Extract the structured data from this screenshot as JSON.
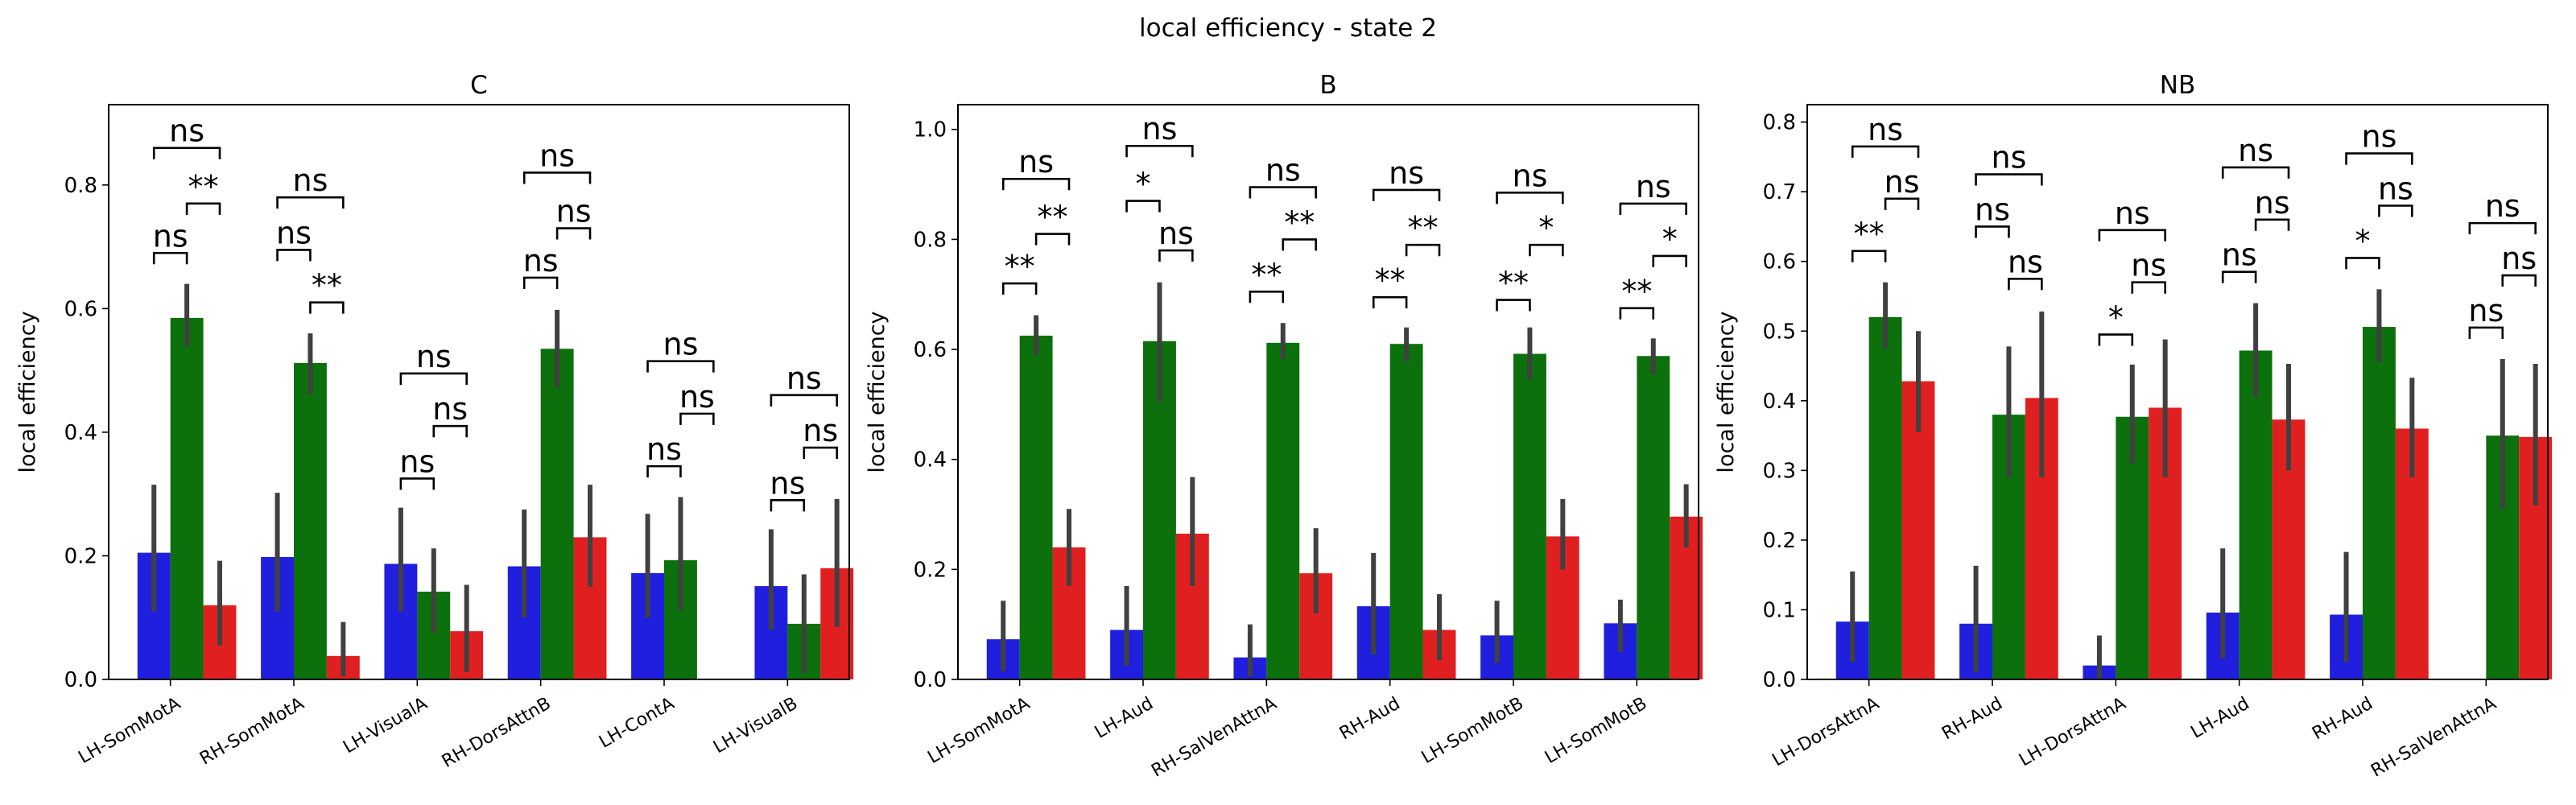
{
  "suptitle": "local efficiency - state 2",
  "colors": {
    "series1": "#1f1fdd",
    "series2": "#0c700c",
    "series3": "#e02020",
    "errorbar": "#404040"
  },
  "chart_data": [
    {
      "type": "bar",
      "title": "C",
      "ylabel": "local efficiency",
      "ylim": [
        0,
        0.93
      ],
      "yticks": [
        "0.0",
        "0.2",
        "0.4",
        "0.6",
        "0.8"
      ],
      "categories": [
        "LH-SomMotA",
        "RH-SomMotA",
        "LH-VisualA",
        "RH-DorsAttnB",
        "LH-ContA",
        "LH-VisualB"
      ],
      "series": [
        {
          "values": [
            0.205,
            0.198,
            0.187,
            0.183,
            0.172,
            0.151
          ],
          "err_low": [
            0.11,
            0.11,
            0.11,
            0.1,
            0.1,
            0.08
          ],
          "err_high": [
            0.315,
            0.302,
            0.278,
            0.275,
            0.268,
            0.243
          ]
        },
        {
          "values": [
            0.585,
            0.512,
            0.142,
            0.535,
            0.193,
            0.09
          ],
          "err_low": [
            0.538,
            0.462,
            0.075,
            0.472,
            0.112,
            0.01
          ],
          "err_high": [
            0.64,
            0.56,
            0.212,
            0.598,
            0.295,
            0.17
          ]
        },
        {
          "values": [
            0.12,
            0.038,
            0.078,
            0.23,
            null,
            0.18
          ],
          "err_low": [
            0.055,
            0.005,
            0.012,
            0.15,
            null,
            0.085
          ],
          "err_high": [
            0.192,
            0.093,
            0.153,
            0.315,
            null,
            0.292
          ]
        }
      ],
      "annotations": [
        {
          "category": 0,
          "from": 0,
          "to": 1,
          "y": 0.69,
          "label": "ns"
        },
        {
          "category": 0,
          "from": 1,
          "to": 2,
          "y": 0.77,
          "label": "**"
        },
        {
          "category": 0,
          "from": 0,
          "to": 2,
          "y": 0.86,
          "label": "ns"
        },
        {
          "category": 1,
          "from": 0,
          "to": 1,
          "y": 0.695,
          "label": "ns"
        },
        {
          "category": 1,
          "from": 1,
          "to": 2,
          "y": 0.61,
          "label": "**"
        },
        {
          "category": 1,
          "from": 0,
          "to": 2,
          "y": 0.78,
          "label": "ns"
        },
        {
          "category": 2,
          "from": 0,
          "to": 1,
          "y": 0.325,
          "label": "ns"
        },
        {
          "category": 2,
          "from": 1,
          "to": 2,
          "y": 0.41,
          "label": "ns"
        },
        {
          "category": 2,
          "from": 0,
          "to": 2,
          "y": 0.495,
          "label": "ns"
        },
        {
          "category": 3,
          "from": 0,
          "to": 1,
          "y": 0.65,
          "label": "ns"
        },
        {
          "category": 3,
          "from": 1,
          "to": 2,
          "y": 0.73,
          "label": "ns"
        },
        {
          "category": 3,
          "from": 0,
          "to": 2,
          "y": 0.82,
          "label": "ns"
        },
        {
          "category": 4,
          "from": 0,
          "to": 1,
          "y": 0.345,
          "label": "ns"
        },
        {
          "category": 4,
          "from": 1,
          "to": 2,
          "y": 0.43,
          "label": "ns"
        },
        {
          "category": 4,
          "from": 0,
          "to": 2,
          "y": 0.515,
          "label": "ns"
        },
        {
          "category": 5,
          "from": 0,
          "to": 1,
          "y": 0.29,
          "label": "ns"
        },
        {
          "category": 5,
          "from": 1,
          "to": 2,
          "y": 0.375,
          "label": "ns"
        },
        {
          "category": 5,
          "from": 0,
          "to": 2,
          "y": 0.46,
          "label": "ns"
        }
      ]
    },
    {
      "type": "bar",
      "title": "B",
      "ylabel": "local efficiency",
      "ylim": [
        0,
        1.045
      ],
      "yticks": [
        "0.0",
        "0.2",
        "0.4",
        "0.6",
        "0.8",
        "1.0"
      ],
      "categories": [
        "LH-SomMotA",
        "LH-Aud",
        "RH-SalVenAttnA",
        "RH-Aud",
        "LH-SomMotB",
        "LH-SomMotB"
      ],
      "series": [
        {
          "values": [
            0.073,
            0.09,
            0.04,
            0.133,
            0.08,
            0.102
          ],
          "err_low": [
            0.015,
            0.025,
            0.005,
            0.045,
            0.03,
            0.05
          ],
          "err_high": [
            0.143,
            0.17,
            0.1,
            0.23,
            0.143,
            0.145
          ]
        },
        {
          "values": [
            0.625,
            0.615,
            0.612,
            0.61,
            0.592,
            0.588
          ],
          "err_low": [
            0.59,
            0.505,
            0.582,
            0.578,
            0.545,
            0.555
          ],
          "err_high": [
            0.662,
            0.722,
            0.648,
            0.64,
            0.64,
            0.62
          ]
        },
        {
          "values": [
            0.24,
            0.265,
            0.193,
            0.09,
            0.26,
            0.296
          ],
          "err_low": [
            0.17,
            0.17,
            0.12,
            0.035,
            0.2,
            0.24
          ],
          "err_high": [
            0.31,
            0.368,
            0.275,
            0.155,
            0.328,
            0.355
          ]
        }
      ],
      "annotations": [
        {
          "category": 0,
          "from": 0,
          "to": 1,
          "y": 0.72,
          "label": "**"
        },
        {
          "category": 0,
          "from": 1,
          "to": 2,
          "y": 0.81,
          "label": "**"
        },
        {
          "category": 0,
          "from": 0,
          "to": 2,
          "y": 0.91,
          "label": "ns"
        },
        {
          "category": 1,
          "from": 0,
          "to": 1,
          "y": 0.87,
          "label": "*"
        },
        {
          "category": 1,
          "from": 1,
          "to": 2,
          "y": 0.78,
          "label": "ns"
        },
        {
          "category": 1,
          "from": 0,
          "to": 2,
          "y": 0.97,
          "label": "ns"
        },
        {
          "category": 2,
          "from": 0,
          "to": 1,
          "y": 0.705,
          "label": "**"
        },
        {
          "category": 2,
          "from": 1,
          "to": 2,
          "y": 0.8,
          "label": "**"
        },
        {
          "category": 2,
          "from": 0,
          "to": 2,
          "y": 0.895,
          "label": "ns"
        },
        {
          "category": 3,
          "from": 0,
          "to": 1,
          "y": 0.695,
          "label": "**"
        },
        {
          "category": 3,
          "from": 1,
          "to": 2,
          "y": 0.79,
          "label": "**"
        },
        {
          "category": 3,
          "from": 0,
          "to": 2,
          "y": 0.89,
          "label": "ns"
        },
        {
          "category": 4,
          "from": 0,
          "to": 1,
          "y": 0.69,
          "label": "**"
        },
        {
          "category": 4,
          "from": 1,
          "to": 2,
          "y": 0.79,
          "label": "*"
        },
        {
          "category": 4,
          "from": 0,
          "to": 2,
          "y": 0.885,
          "label": "ns"
        },
        {
          "category": 5,
          "from": 0,
          "to": 1,
          "y": 0.675,
          "label": "**"
        },
        {
          "category": 5,
          "from": 1,
          "to": 2,
          "y": 0.77,
          "label": "*"
        },
        {
          "category": 5,
          "from": 0,
          "to": 2,
          "y": 0.865,
          "label": "ns"
        }
      ]
    },
    {
      "type": "bar",
      "title": "NB",
      "ylabel": "local efficiency",
      "ylim": [
        0,
        0.825
      ],
      "yticks": [
        "0.0",
        "0.1",
        "0.2",
        "0.3",
        "0.4",
        "0.5",
        "0.6",
        "0.7",
        "0.8"
      ],
      "categories": [
        "LH-DorsAttnA",
        "RH-Aud",
        "LH-DorsAttnA",
        "LH-Aud",
        "RH-Aud",
        "RH-SalVenAttnA"
      ],
      "series": [
        {
          "values": [
            0.083,
            0.08,
            0.02,
            0.096,
            0.093,
            null
          ],
          "err_low": [
            0.025,
            0.01,
            0.0,
            0.03,
            0.025,
            null
          ],
          "err_high": [
            0.155,
            0.163,
            0.063,
            0.188,
            0.183,
            null
          ]
        },
        {
          "values": [
            0.52,
            0.38,
            0.377,
            0.472,
            0.506,
            0.35
          ],
          "err_low": [
            0.475,
            0.29,
            0.31,
            0.405,
            0.455,
            0.245
          ],
          "err_high": [
            0.57,
            0.478,
            0.452,
            0.54,
            0.56,
            0.46
          ]
        },
        {
          "values": [
            0.428,
            0.404,
            0.39,
            0.373,
            0.36,
            0.348
          ],
          "err_low": [
            0.355,
            0.29,
            0.29,
            0.3,
            0.29,
            0.25
          ],
          "err_high": [
            0.5,
            0.528,
            0.488,
            0.453,
            0.433,
            0.453
          ]
        }
      ],
      "annotations": [
        {
          "category": 0,
          "from": 0,
          "to": 1,
          "y": 0.615,
          "label": "**"
        },
        {
          "category": 0,
          "from": 1,
          "to": 2,
          "y": 0.69,
          "label": "ns"
        },
        {
          "category": 0,
          "from": 0,
          "to": 2,
          "y": 0.765,
          "label": "ns"
        },
        {
          "category": 1,
          "from": 0,
          "to": 1,
          "y": 0.65,
          "label": "ns"
        },
        {
          "category": 1,
          "from": 1,
          "to": 2,
          "y": 0.575,
          "label": "ns"
        },
        {
          "category": 1,
          "from": 0,
          "to": 2,
          "y": 0.725,
          "label": "ns"
        },
        {
          "category": 2,
          "from": 0,
          "to": 1,
          "y": 0.495,
          "label": "*"
        },
        {
          "category": 2,
          "from": 1,
          "to": 2,
          "y": 0.57,
          "label": "ns"
        },
        {
          "category": 2,
          "from": 0,
          "to": 2,
          "y": 0.645,
          "label": "ns"
        },
        {
          "category": 3,
          "from": 0,
          "to": 1,
          "y": 0.585,
          "label": "ns"
        },
        {
          "category": 3,
          "from": 1,
          "to": 2,
          "y": 0.66,
          "label": "ns"
        },
        {
          "category": 3,
          "from": 0,
          "to": 2,
          "y": 0.735,
          "label": "ns"
        },
        {
          "category": 4,
          "from": 0,
          "to": 1,
          "y": 0.605,
          "label": "*"
        },
        {
          "category": 4,
          "from": 1,
          "to": 2,
          "y": 0.68,
          "label": "ns"
        },
        {
          "category": 4,
          "from": 0,
          "to": 2,
          "y": 0.755,
          "label": "ns"
        },
        {
          "category": 5,
          "from": 0,
          "to": 1,
          "y": 0.505,
          "label": "ns"
        },
        {
          "category": 5,
          "from": 1,
          "to": 2,
          "y": 0.58,
          "label": "ns"
        },
        {
          "category": 5,
          "from": 0,
          "to": 2,
          "y": 0.655,
          "label": "ns"
        }
      ]
    }
  ]
}
